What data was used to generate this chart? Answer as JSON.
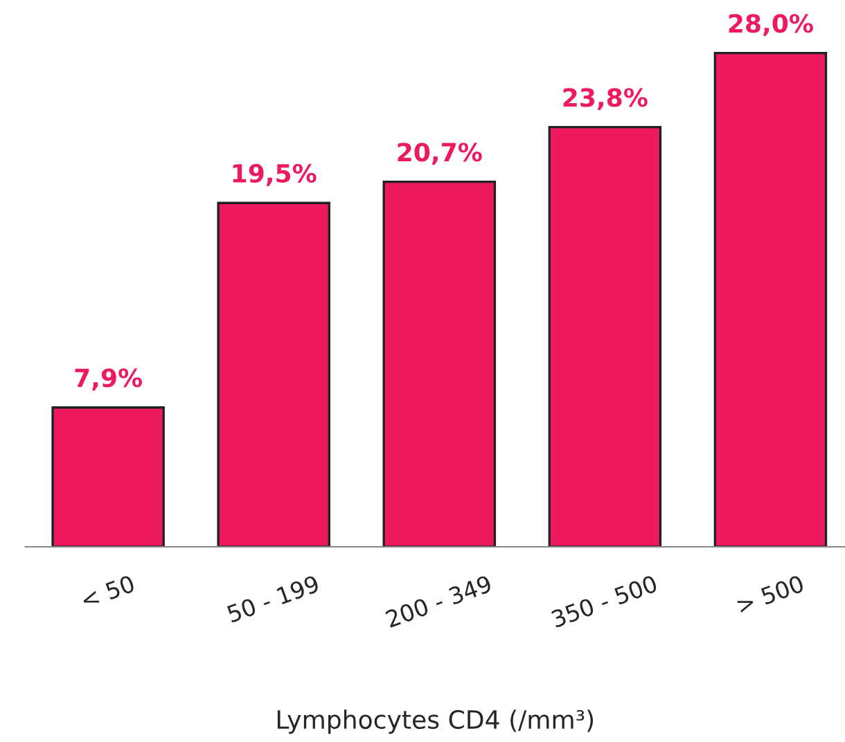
{
  "chart_data": {
    "type": "bar",
    "xlabel": "Lymphocytes CD4 (/mm³)",
    "categories": [
      "< 50",
      "50 - 199",
      "200 - 349",
      "350 - 500",
      "> 500"
    ],
    "values": [
      7.9,
      19.5,
      20.7,
      23.8,
      28.0
    ],
    "value_labels": [
      "7,9%",
      "19,5%",
      "20,7%",
      "23,8%",
      "28,0%"
    ],
    "color": "#ee1a5e",
    "grid": false,
    "legend": false
  }
}
